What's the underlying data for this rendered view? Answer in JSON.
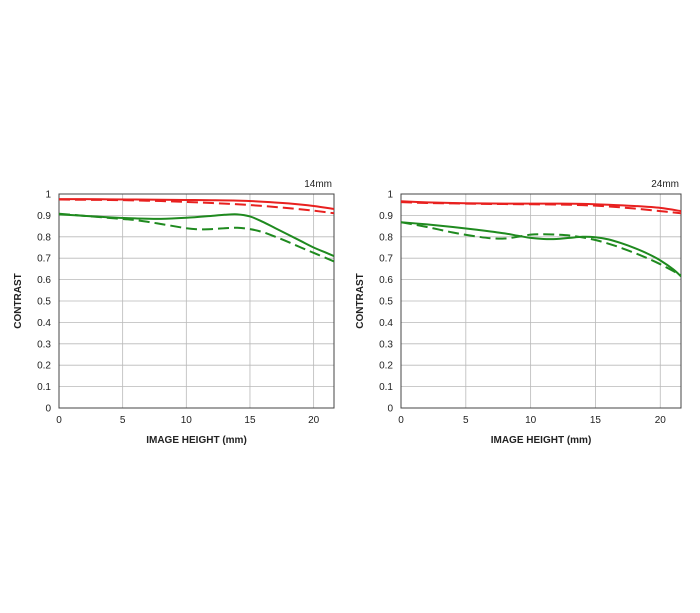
{
  "chart_data": [
    {
      "type": "line",
      "annotation": "14mm",
      "xlabel": "IMAGE HEIGHT (mm)",
      "ylabel": "CONTRAST",
      "xlim": [
        0,
        21.6
      ],
      "ylim": [
        0,
        1
      ],
      "xticks": [
        "0",
        "5",
        "10",
        "15",
        "20"
      ],
      "yticks": [
        "0",
        "0.1",
        "0.2",
        "0.3",
        "0.4",
        "0.5",
        "0.6",
        "0.7",
        "0.8",
        "0.9",
        "1"
      ],
      "grid": true,
      "series": [
        {
          "color": "#e8201f",
          "dash": false,
          "x": [
            0,
            2,
            4,
            6,
            8,
            10,
            12,
            14,
            16,
            18,
            20,
            21.6
          ],
          "y": [
            0.976,
            0.976,
            0.975,
            0.974,
            0.973,
            0.972,
            0.971,
            0.969,
            0.964,
            0.956,
            0.944,
            0.93
          ]
        },
        {
          "color": "#e8201f",
          "dash": true,
          "x": [
            0,
            2,
            4,
            6,
            8,
            10,
            12,
            14,
            16,
            18,
            20,
            21.6
          ],
          "y": [
            0.974,
            0.973,
            0.972,
            0.97,
            0.967,
            0.963,
            0.958,
            0.952,
            0.944,
            0.934,
            0.922,
            0.91
          ]
        },
        {
          "color": "#1f8a1f",
          "dash": false,
          "x": [
            0,
            2,
            4,
            6,
            8,
            10,
            12,
            13,
            14,
            15,
            16,
            17,
            18,
            19,
            20,
            21,
            21.6
          ],
          "y": [
            0.905,
            0.898,
            0.891,
            0.886,
            0.884,
            0.889,
            0.898,
            0.903,
            0.905,
            0.895,
            0.87,
            0.84,
            0.81,
            0.78,
            0.75,
            0.725,
            0.71
          ]
        },
        {
          "color": "#1f8a1f",
          "dash": true,
          "x": [
            0,
            2,
            4,
            6,
            8,
            10,
            11,
            12,
            13,
            14,
            15,
            16,
            17,
            18,
            19,
            20,
            21,
            21.6
          ],
          "y": [
            0.908,
            0.898,
            0.888,
            0.878,
            0.86,
            0.84,
            0.835,
            0.836,
            0.84,
            0.842,
            0.836,
            0.822,
            0.8,
            0.776,
            0.75,
            0.725,
            0.7,
            0.685
          ]
        }
      ]
    },
    {
      "type": "line",
      "annotation": "24mm",
      "xlabel": "IMAGE HEIGHT (mm)",
      "ylabel": "CONTRAST",
      "xlim": [
        0,
        21.6
      ],
      "ylim": [
        0,
        1
      ],
      "xticks": [
        "0",
        "5",
        "10",
        "15",
        "20"
      ],
      "yticks": [
        "0",
        "0.1",
        "0.2",
        "0.3",
        "0.4",
        "0.5",
        "0.6",
        "0.7",
        "0.8",
        "0.9",
        "1"
      ],
      "grid": true,
      "series": [
        {
          "color": "#e8201f",
          "dash": false,
          "x": [
            0,
            2,
            4,
            6,
            8,
            10,
            12,
            14,
            16,
            18,
            20,
            21.6
          ],
          "y": [
            0.966,
            0.961,
            0.958,
            0.956,
            0.955,
            0.955,
            0.955,
            0.954,
            0.95,
            0.944,
            0.935,
            0.92
          ]
        },
        {
          "color": "#e8201f",
          "dash": true,
          "x": [
            0,
            2,
            4,
            6,
            8,
            10,
            12,
            14,
            16,
            18,
            20,
            21.6
          ],
          "y": [
            0.962,
            0.958,
            0.956,
            0.954,
            0.953,
            0.952,
            0.951,
            0.948,
            0.942,
            0.932,
            0.92,
            0.91
          ]
        },
        {
          "color": "#1f8a1f",
          "dash": false,
          "x": [
            0,
            2,
            4,
            6,
            8,
            9,
            10,
            11,
            12,
            13,
            14,
            15,
            16,
            17,
            18,
            19,
            20,
            21,
            21.6
          ],
          "y": [
            0.868,
            0.858,
            0.846,
            0.832,
            0.816,
            0.805,
            0.795,
            0.79,
            0.79,
            0.795,
            0.8,
            0.798,
            0.788,
            0.77,
            0.748,
            0.722,
            0.69,
            0.648,
            0.615
          ]
        },
        {
          "color": "#1f8a1f",
          "dash": true,
          "x": [
            0,
            2,
            4,
            6,
            7,
            8,
            9,
            10,
            11,
            12,
            13,
            14,
            15,
            16,
            17,
            18,
            19,
            20,
            21,
            21.6
          ],
          "y": [
            0.868,
            0.846,
            0.82,
            0.8,
            0.793,
            0.792,
            0.8,
            0.81,
            0.812,
            0.81,
            0.806,
            0.797,
            0.785,
            0.768,
            0.748,
            0.725,
            0.7,
            0.672,
            0.64,
            0.62
          ]
        }
      ]
    }
  ]
}
